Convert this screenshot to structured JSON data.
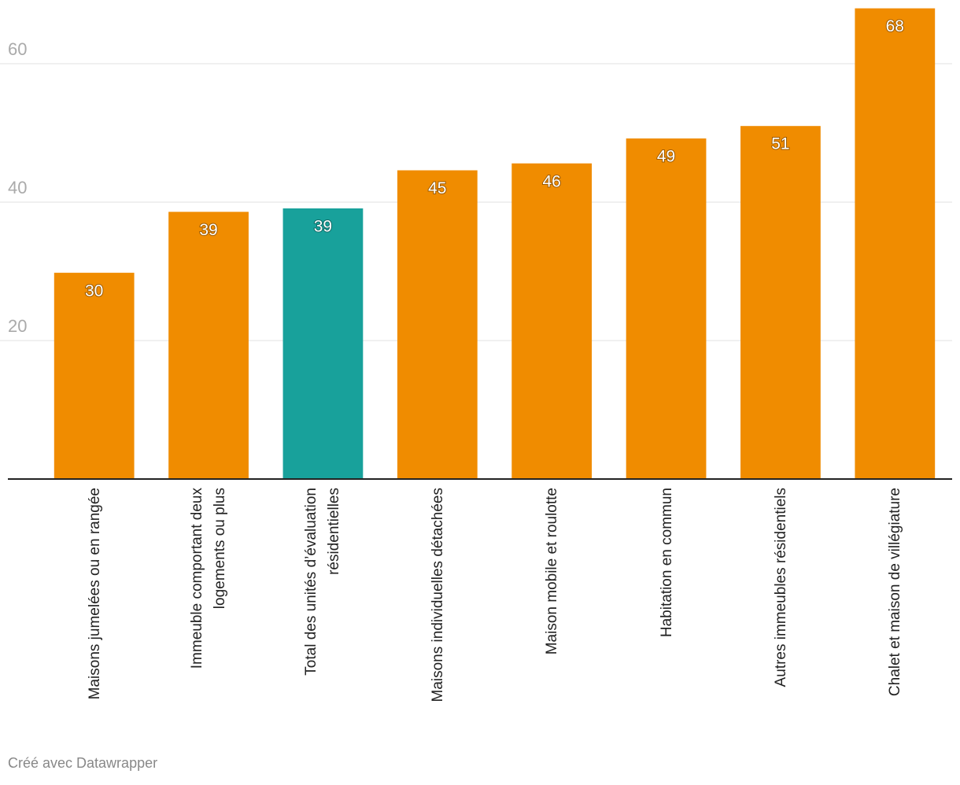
{
  "chart_data": {
    "type": "bar",
    "categories": [
      "Maisons jumelées ou en rangée",
      "Immeuble comportant deux logements ou plus",
      "Total des unités d’évaluation résidentielles",
      "Maisons individuelles détachées",
      "Maison mobile et roulotte",
      "Habitation en commun",
      "Autres immeubles résidentiels",
      "Chalet et maison de villégiature"
    ],
    "values": [
      29.8,
      38.6,
      39.1,
      44.6,
      45.6,
      49.2,
      51.0,
      68.0
    ],
    "value_labels": [
      "30",
      "39",
      "39",
      "45",
      "46",
      "49",
      "51",
      "68"
    ],
    "colors": [
      "#f08c00",
      "#f08c00",
      "#18a19b",
      "#f08c00",
      "#f08c00",
      "#f08c00",
      "#f08c00",
      "#f08c00"
    ],
    "ylim": [
      0,
      68
    ],
    "yticks": [
      20,
      40,
      60
    ],
    "grid": true,
    "footer": "Créé avec Datawrapper"
  }
}
